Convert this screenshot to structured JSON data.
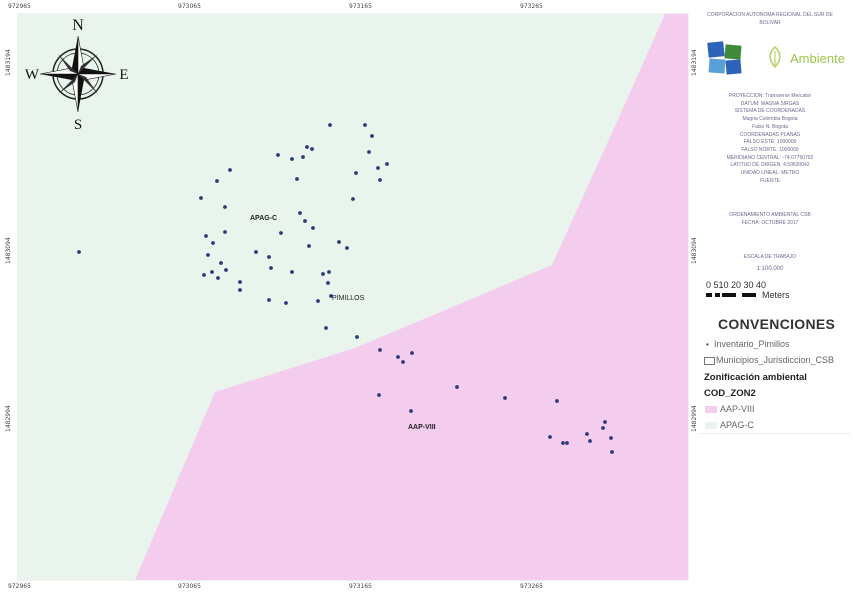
{
  "map": {
    "ticks_top": [
      "972965",
      "973065",
      "973165",
      "973265"
    ],
    "ticks_bottom": [
      "972965",
      "973065",
      "973165",
      "973265"
    ],
    "ticks_left": [
      "1483194",
      "1483094",
      "1482994"
    ],
    "ticks_right": [
      "1483194",
      "1483094",
      "1482994"
    ],
    "zones": [
      {
        "name": "APAG-C",
        "color": "#e9f5ec"
      },
      {
        "name": "AAP-VIII",
        "color": "#f4cdee"
      }
    ],
    "labels": {
      "apag": "APAG-C",
      "pimillos": "PIMILLOS",
      "aap": "AAP-VIII"
    },
    "compass": {
      "n": "N",
      "s": "S",
      "e": "E",
      "w": "W"
    },
    "point_color": "#2a3b7c"
  },
  "panel": {
    "institution": "CORPORACION AUTONOMA REGIONAL DEL SUR DE BOLIVAR",
    "logo_text": "Ambiente",
    "info_lines": [
      "PROYECCION: Transverse Mercator",
      "DATUM: MAGNA SIRGAS",
      "SISTEMA DE COORDENADAS",
      "Magna Colombia Bogota",
      "Falso N: Bogota",
      "COORDENADAS PLANAS",
      "FALSO ESTE: 1000000",
      "FALSO NORTE: 1000000",
      "MERIDIANO CENTRAL: -74.07750792",
      "LATITUD DE ORIGEN: 4.59620042",
      "UNIDAD LINEAL: METRO",
      "FUENTE"
    ],
    "ordenamiento_lines": [
      "ORDENAMIENTO AMBIENTAL CSB",
      "FECHA: OCTUBRE 2017"
    ],
    "escala_label": "ESCALA DE TRABAJO",
    "escala_value": "1:100.000",
    "scale_numbers": "0 510  20  30  40",
    "scale_unit": "Meters",
    "convenciones_title": "CONVENCIONES",
    "legend": {
      "inventario": "Inventario_Pimillos",
      "municipios": "Municipios_Jurisdiccion_CSB",
      "zonificacion": "Zonificación ambiental",
      "cod": "COD_ZON2",
      "aap": "AAP-VIII",
      "apag": "APAG-C"
    },
    "colors": {
      "aap": "#f4cdee",
      "apag": "#e9f5ec",
      "point": "#2a3b7c"
    }
  }
}
